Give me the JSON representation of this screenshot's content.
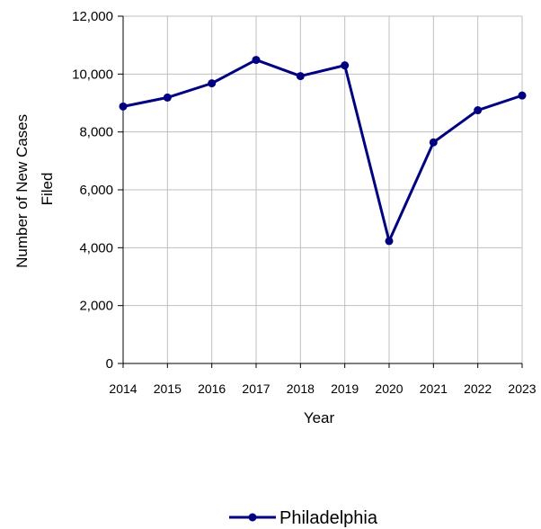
{
  "chart_data": {
    "type": "line",
    "x": [
      "2014",
      "2015",
      "2016",
      "2017",
      "2018",
      "2019",
      "2020",
      "2021",
      "2022",
      "2023"
    ],
    "series": [
      {
        "name": "Philadelphia",
        "values": [
          8880,
          9190,
          9680,
          10490,
          9930,
          10300,
          4230,
          7640,
          8750,
          9260
        ]
      }
    ],
    "title": "",
    "xlabel": "Year",
    "ylabel_lines": [
      "Number of New Cases",
      "Filed"
    ],
    "ylim": [
      0,
      12000
    ],
    "yticks": [
      0,
      2000,
      4000,
      6000,
      8000,
      10000,
      12000
    ],
    "ytick_labels": [
      "0",
      "2,000",
      "4,000",
      "6,000",
      "8,000",
      "10,000",
      "12,000"
    ],
    "grid": true,
    "legend_position": "bottom",
    "line_color": "#000080",
    "grid_color": "#bfbfbf"
  }
}
